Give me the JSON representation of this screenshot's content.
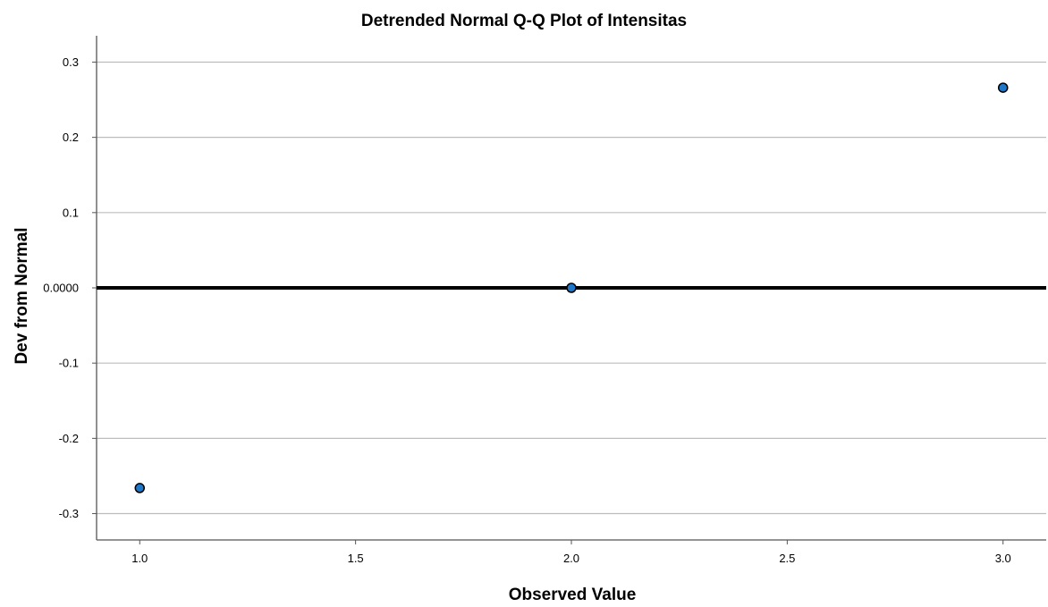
{
  "chart_data": {
    "type": "scatter",
    "title": "Detrended Normal Q-Q Plot of Intensitas",
    "xlabel": "Observed Value",
    "ylabel": "Dev from Normal",
    "xlim": [
      0.9,
      3.1
    ],
    "ylim": [
      -0.335,
      0.335
    ],
    "x_ticks": [
      {
        "value": 1.0,
        "label": "1.0"
      },
      {
        "value": 1.5,
        "label": "1.5"
      },
      {
        "value": 2.0,
        "label": "2.0"
      },
      {
        "value": 2.5,
        "label": "2.5"
      },
      {
        "value": 3.0,
        "label": "3.0"
      }
    ],
    "y_ticks": [
      {
        "value": 0.3,
        "label": "0.3"
      },
      {
        "value": 0.2,
        "label": "0.2"
      },
      {
        "value": 0.1,
        "label": "0.1"
      },
      {
        "value": 0.0,
        "label": "0.0000"
      },
      {
        "value": -0.1,
        "label": "-0.1"
      },
      {
        "value": -0.2,
        "label": "-0.2"
      },
      {
        "value": -0.3,
        "label": "-0.3"
      }
    ],
    "grid": true,
    "reference_line": {
      "y": 0
    },
    "points": [
      {
        "x": 1.0,
        "y": -0.266
      },
      {
        "x": 2.0,
        "y": 0.0
      },
      {
        "x": 3.0,
        "y": 0.266
      }
    ],
    "colors": {
      "marker_fill": "#1f77c9",
      "marker_stroke": "#000000",
      "grid": "#bdbdbd",
      "reference_line": "#000000",
      "axis": "#555555"
    }
  }
}
